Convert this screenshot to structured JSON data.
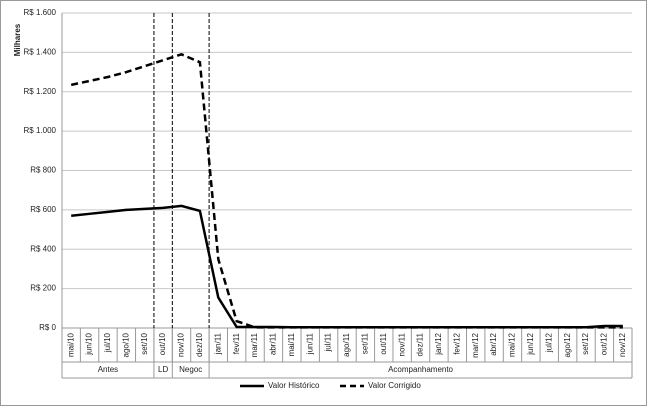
{
  "chart_data": {
    "type": "line",
    "y_label": "Milhares",
    "categories": [
      "mai/10",
      "jun/10",
      "jul/10",
      "ago/10",
      "set/10",
      "out/10",
      "nov/10",
      "dez/10",
      "jan/11",
      "fev/11",
      "mar/11",
      "abr/11",
      "mai/11",
      "jun/11",
      "jul/11",
      "ago/11",
      "set/11",
      "out/11",
      "nov/11",
      "dez/11",
      "jan/12",
      "fev/12",
      "mar/12",
      "abr/12",
      "mai/12",
      "jun/12",
      "jul/12",
      "ago/12",
      "set/12",
      "out/12",
      "nov/12"
    ],
    "groups": [
      {
        "label": "Antes",
        "count": 5
      },
      {
        "label": "LD",
        "count": 1
      },
      {
        "label": "Negoc",
        "count": 2
      },
      {
        "label": "Acompanhamento",
        "count": 23
      }
    ],
    "series": [
      {
        "name": "Valor Histórico",
        "color": "#000000",
        "dash": false,
        "values": [
          570,
          580,
          590,
          600,
          605,
          610,
          620,
          595,
          155,
          5,
          5,
          5,
          4,
          4,
          4,
          4,
          4,
          4,
          4,
          4,
          4,
          4,
          4,
          4,
          4,
          4,
          4,
          4,
          4,
          10,
          10
        ]
      },
      {
        "name": "Valor Corrigido",
        "color": "#000000",
        "dash": true,
        "values": [
          1235,
          1255,
          1275,
          1300,
          1330,
          1360,
          1390,
          1350,
          350,
          35,
          3,
          3,
          3,
          3,
          3,
          3,
          3,
          3,
          3,
          3,
          3,
          3,
          3,
          3,
          3,
          3,
          3,
          3,
          3,
          3,
          3
        ]
      }
    ],
    "ylim": [
      0,
      1600
    ],
    "yticks": [
      {
        "value": 0,
        "label": "R$ 0"
      },
      {
        "value": 200,
        "label": "R$ 200"
      },
      {
        "value": 400,
        "label": "R$ 400"
      },
      {
        "value": 600,
        "label": "R$ 600"
      },
      {
        "value": 800,
        "label": "R$ 800"
      },
      {
        "value": 1000,
        "label": "R$ 1.000"
      },
      {
        "value": 1200,
        "label": "R$ 1.200"
      },
      {
        "value": 1400,
        "label": "R$ 1.400"
      },
      {
        "value": 1600,
        "label": "R$ 1.600"
      }
    ],
    "grid": true
  }
}
